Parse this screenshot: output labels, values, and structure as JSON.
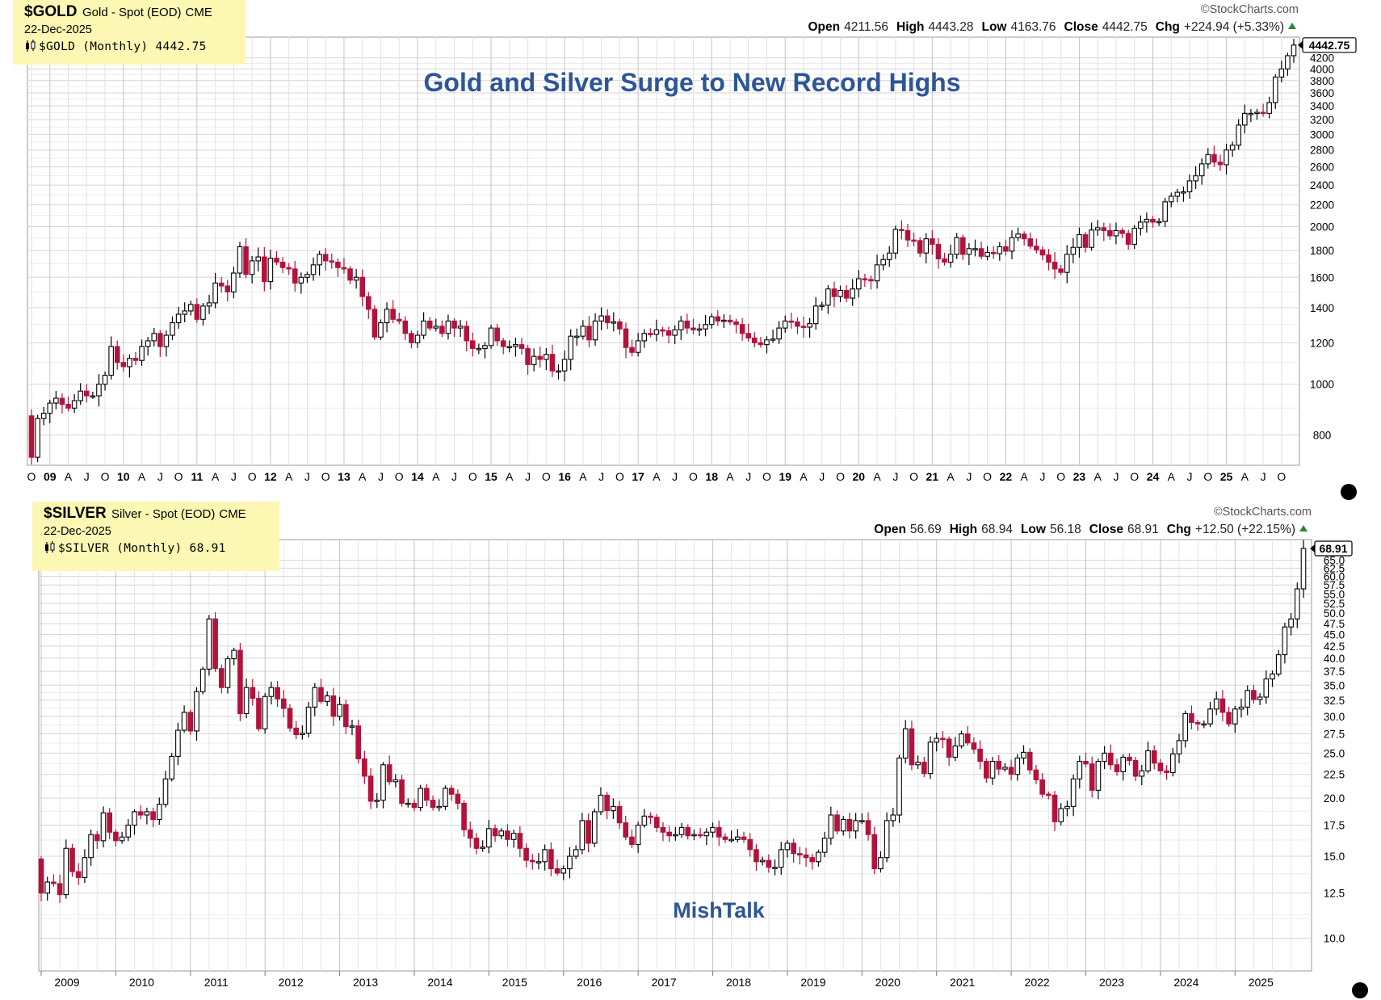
{
  "headline": "Gold and Silver Surge to New Record Highs",
  "watermark": "MishTalk",
  "colors": {
    "up_fill": "#ffffff",
    "up_stroke": "#000000",
    "down": "#b3123b",
    "grid": "#d6d6d6",
    "legend_bg": "#fdf7b4",
    "headline": "#2e5596"
  },
  "panels": [
    {
      "symbol": "$GOLD",
      "name": "Gold - Spot (EOD)",
      "exchange": "CME",
      "date": "22-Dec-2025",
      "legend": "$GOLD (Monthly) 4442.75",
      "credit": "©StockCharts.com",
      "ohlc_labels": [
        "Open",
        "High",
        "Low",
        "Close",
        "Chg"
      ],
      "ohlc_values": [
        "4211.56",
        "4443.28",
        "4163.76",
        "4442.75",
        "+224.94 (+5.33%)"
      ],
      "last_price": "4442.75",
      "y_ticks": [
        "800",
        "1000",
        "1200",
        "1400",
        "1600",
        "1800",
        "2000",
        "2200",
        "2400",
        "2600",
        "2800",
        "3000",
        "3200",
        "3400",
        "3600",
        "3800",
        "4000",
        "4200"
      ],
      "x_labels": [
        "O",
        "09",
        "A",
        "J",
        "O",
        "10",
        "A",
        "J",
        "O",
        "11",
        "A",
        "J",
        "O",
        "12",
        "A",
        "J",
        "O",
        "13",
        "A",
        "J",
        "O",
        "14",
        "A",
        "J",
        "O",
        "15",
        "A",
        "J",
        "O",
        "16",
        "A",
        "J",
        "O",
        "17",
        "A",
        "J",
        "O",
        "18",
        "A",
        "J",
        "O",
        "19",
        "A",
        "J",
        "O",
        "20",
        "A",
        "J",
        "O",
        "21",
        "A",
        "J",
        "O",
        "22",
        "A",
        "J",
        "O",
        "23",
        "A",
        "J",
        "O",
        "24",
        "A",
        "J",
        "O",
        "25",
        "A",
        "J",
        "O"
      ]
    },
    {
      "symbol": "$SILVER",
      "name": "Silver - Spot (EOD)",
      "exchange": "CME",
      "date": "22-Dec-2025",
      "legend": "$SILVER (Monthly) 68.91",
      "credit": "©StockCharts.com",
      "ohlc_labels": [
        "Open",
        "High",
        "Low",
        "Close",
        "Chg"
      ],
      "ohlc_values": [
        "56.69",
        "68.94",
        "56.18",
        "68.91",
        "+12.50 (+22.15%)"
      ],
      "last_price": "68.91",
      "y_ticks": [
        "10.0",
        "12.5",
        "15.0",
        "17.5",
        "20.0",
        "22.5",
        "25.0",
        "27.5",
        "30.0",
        "32.5",
        "35.0",
        "37.5",
        "40.0",
        "42.5",
        "45.0",
        "47.5",
        "50.0",
        "52.5",
        "55.0",
        "57.5",
        "60.0",
        "62.5",
        "65.0"
      ],
      "x_labels": [
        "2009",
        "2010",
        "2011",
        "2012",
        "2013",
        "2014",
        "2015",
        "2016",
        "2017",
        "2018",
        "2019",
        "2020",
        "2021",
        "2022",
        "2023",
        "2024",
        "2025"
      ]
    }
  ],
  "chart_data": [
    {
      "type": "candlestick",
      "title": "$GOLD Gold - Spot (EOD) CME (Monthly)",
      "scale": "log",
      "ylim": [
        700,
        4600
      ],
      "x_start": "2008-10",
      "x_end": "2025-12",
      "closes": [
        [
          2008,
          [
            725,
            860,
            880
          ]
        ],
        [
          2009,
          [
            920,
            940,
            915,
            900,
            930,
            970,
            950,
            950,
            1000,
            1040,
            1180,
            1100
          ]
        ],
        [
          2010,
          [
            1080,
            1120,
            1110,
            1180,
            1210,
            1250,
            1180,
            1240,
            1310,
            1360,
            1380,
            1420
          ]
        ],
        [
          2011,
          [
            1330,
            1410,
            1430,
            1560,
            1540,
            1500,
            1630,
            1830,
            1620,
            1720,
            1750,
            1570
          ]
        ],
        [
          2012,
          [
            1740,
            1710,
            1670,
            1660,
            1560,
            1600,
            1620,
            1690,
            1770,
            1720,
            1710,
            1670
          ]
        ],
        [
          2013,
          [
            1660,
            1580,
            1600,
            1470,
            1390,
            1230,
            1310,
            1390,
            1330,
            1320,
            1250,
            1200
          ]
        ],
        [
          2014,
          [
            1240,
            1320,
            1280,
            1290,
            1250,
            1320,
            1280,
            1290,
            1210,
            1170,
            1170,
            1185
          ]
        ],
        [
          2015,
          [
            1280,
            1210,
            1180,
            1180,
            1190,
            1170,
            1090,
            1130,
            1115,
            1140,
            1060,
            1060
          ]
        ],
        [
          2016,
          [
            1115,
            1235,
            1235,
            1290,
            1215,
            1320,
            1350,
            1310,
            1315,
            1275,
            1175,
            1150
          ]
        ],
        [
          2017,
          [
            1210,
            1250,
            1245,
            1270,
            1265,
            1240,
            1270,
            1320,
            1280,
            1270,
            1275,
            1300
          ]
        ],
        [
          2018,
          [
            1345,
            1320,
            1325,
            1315,
            1300,
            1250,
            1225,
            1200,
            1190,
            1215,
            1220,
            1280
          ]
        ],
        [
          2019,
          [
            1320,
            1315,
            1290,
            1285,
            1305,
            1410,
            1415,
            1520,
            1470,
            1510,
            1460,
            1520
          ]
        ],
        [
          2020,
          [
            1590,
            1585,
            1575,
            1690,
            1730,
            1780,
            1975,
            1965,
            1885,
            1880,
            1780,
            1895
          ]
        ],
        [
          2021,
          [
            1850,
            1735,
            1710,
            1770,
            1905,
            1770,
            1815,
            1815,
            1755,
            1785,
            1775,
            1830
          ]
        ],
        [
          2022,
          [
            1795,
            1905,
            1935,
            1895,
            1835,
            1805,
            1765,
            1710,
            1660,
            1635,
            1770,
            1825
          ]
        ],
        [
          2023,
          [
            1930,
            1825,
            1970,
            1990,
            1965,
            1920,
            1965,
            1940,
            1850,
            1985,
            2040,
            2065
          ]
        ],
        [
          2024,
          [
            2040,
            2045,
            2230,
            2285,
            2325,
            2330,
            2445,
            2500,
            2635,
            2745,
            2655,
            2625
          ]
        ],
        [
          2025,
          [
            2800,
            2860,
            3125,
            3290,
            3290,
            3305,
            3290,
            3450,
            3860,
            4000,
            4240,
            4442.75
          ]
        ]
      ]
    },
    {
      "type": "candlestick",
      "title": "$SILVER Silver - Spot (EOD) CME (Monthly)",
      "scale": "log",
      "ylim": [
        8.5,
        72
      ],
      "x_start": "2009-01",
      "x_end": "2025-12",
      "closes": [
        [
          2009,
          [
            12.5,
            13.2,
            13.1,
            12.4,
            15.6,
            13.9,
            13.5,
            14.9,
            16.7,
            16.2,
            18.6,
            16.9
          ]
        ],
        [
          2010,
          [
            16.2,
            16.5,
            17.5,
            18.7,
            18.4,
            18.7,
            18.0,
            19.4,
            22.0,
            24.6,
            28.0,
            30.6
          ]
        ],
        [
          2011,
          [
            27.9,
            33.9,
            37.9,
            48.6,
            38.0,
            34.6,
            39.9,
            41.6,
            30.4,
            34.6,
            32.8,
            28.2
          ]
        ],
        [
          2012,
          [
            33.1,
            34.6,
            32.7,
            31.2,
            28.3,
            27.4,
            27.6,
            31.4,
            34.6,
            32.3,
            33.2,
            30.0
          ]
        ],
        [
          2013,
          [
            31.8,
            28.5,
            28.6,
            24.3,
            22.3,
            19.7,
            19.8,
            23.6,
            21.7,
            21.9,
            19.5,
            19.5
          ]
        ],
        [
          2014,
          [
            19.1,
            21.0,
            19.8,
            19.1,
            19.2,
            21.0,
            20.4,
            19.5,
            17.1,
            16.4,
            15.6,
            15.7
          ]
        ],
        [
          2015,
          [
            17.2,
            16.6,
            17.0,
            16.3,
            16.8,
            15.6,
            14.7,
            14.6,
            14.6,
            15.5,
            14.1,
            13.8
          ]
        ],
        [
          2016,
          [
            14.1,
            15.0,
            15.5,
            17.9,
            16.0,
            18.7,
            20.3,
            18.8,
            19.2,
            17.7,
            16.5,
            15.9
          ]
        ],
        [
          2017,
          [
            17.5,
            18.3,
            18.2,
            17.3,
            16.9,
            16.6,
            16.7,
            17.3,
            16.6,
            16.7,
            16.6,
            16.9
          ]
        ],
        [
          2018,
          [
            17.3,
            16.5,
            16.3,
            16.3,
            16.5,
            16.3,
            15.5,
            14.6,
            14.7,
            14.2,
            14.2,
            15.5
          ]
        ],
        [
          2019,
          [
            16.0,
            15.2,
            15.1,
            14.9,
            14.6,
            15.3,
            16.4,
            18.4,
            17.0,
            18.0,
            17.0,
            17.9
          ]
        ],
        [
          2020,
          [
            17.9,
            16.7,
            14.1,
            14.9,
            17.9,
            18.4,
            24.4,
            28.2,
            23.6,
            23.9,
            22.6,
            26.4
          ]
        ],
        [
          2021,
          [
            26.9,
            26.8,
            24.5,
            25.9,
            27.5,
            26.3,
            25.5,
            24.0,
            22.1,
            24.0,
            23.1,
            23.3
          ]
        ],
        [
          2022,
          [
            22.5,
            24.4,
            25.1,
            23.0,
            21.9,
            20.4,
            20.3,
            17.8,
            19.0,
            19.2,
            22.0,
            24.0
          ]
        ],
        [
          2023,
          [
            23.7,
            20.8,
            24.0,
            25.0,
            23.6,
            22.8,
            24.5,
            24.1,
            22.3,
            22.9,
            25.3,
            23.8
          ]
        ],
        [
          2024,
          [
            22.9,
            22.7,
            24.9,
            26.6,
            30.4,
            29.1,
            28.9,
            28.9,
            31.1,
            32.7,
            30.6,
            28.9
          ]
        ],
        [
          2025,
          [
            31.1,
            31.4,
            34.1,
            32.6,
            33.0,
            36.1,
            37.0,
            40.7,
            46.7,
            48.6,
            56.4,
            68.91
          ]
        ]
      ]
    }
  ]
}
